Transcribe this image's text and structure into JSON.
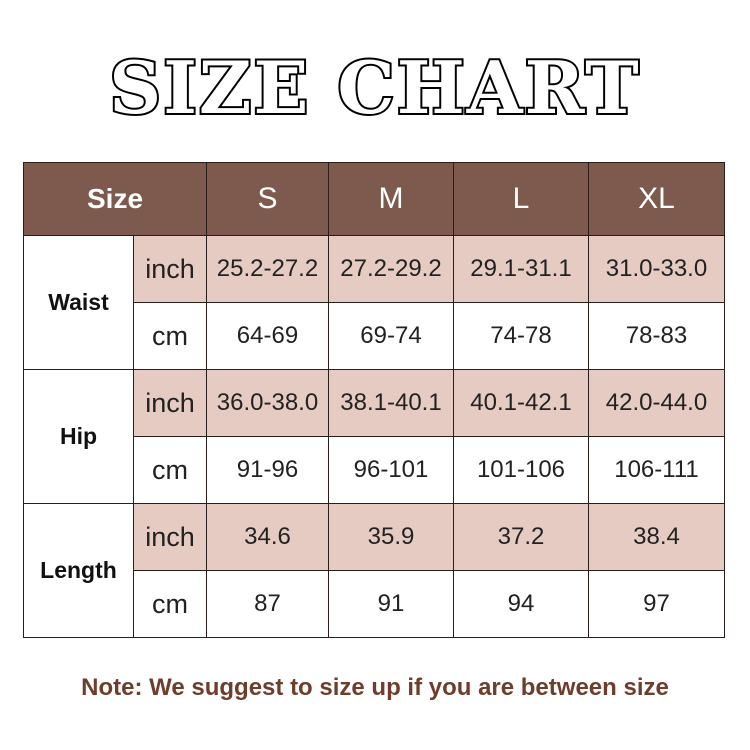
{
  "title": "SIZE CHART",
  "header": {
    "size_label": "Size",
    "sizes": [
      "S",
      "M",
      "L",
      "XL"
    ]
  },
  "groups": [
    {
      "name": "Waist",
      "rows": [
        {
          "unit": "inch",
          "values": [
            "25.2-27.2",
            "27.2-29.2",
            "29.1-31.1",
            "31.0-33.0"
          ]
        },
        {
          "unit": "cm",
          "values": [
            "64-69",
            "69-74",
            "74-78",
            "78-83"
          ]
        }
      ]
    },
    {
      "name": "Hip",
      "rows": [
        {
          "unit": "inch",
          "values": [
            "36.0-38.0",
            "38.1-40.1",
            "40.1-42.1",
            "42.0-44.0"
          ]
        },
        {
          "unit": "cm",
          "values": [
            "91-96",
            "96-101",
            "101-106",
            "106-111"
          ]
        }
      ]
    },
    {
      "name": "Length",
      "rows": [
        {
          "unit": "inch",
          "values": [
            "34.6",
            "35.9",
            "37.2",
            "38.4"
          ]
        },
        {
          "unit": "cm",
          "values": [
            "87",
            "91",
            "94",
            "97"
          ]
        }
      ]
    }
  ],
  "note": "Note: We suggest to size up if you are between size",
  "colors": {
    "header": "#7d5a4d",
    "inch_row": "#e6cbc2",
    "note": "#6e3d2c"
  }
}
